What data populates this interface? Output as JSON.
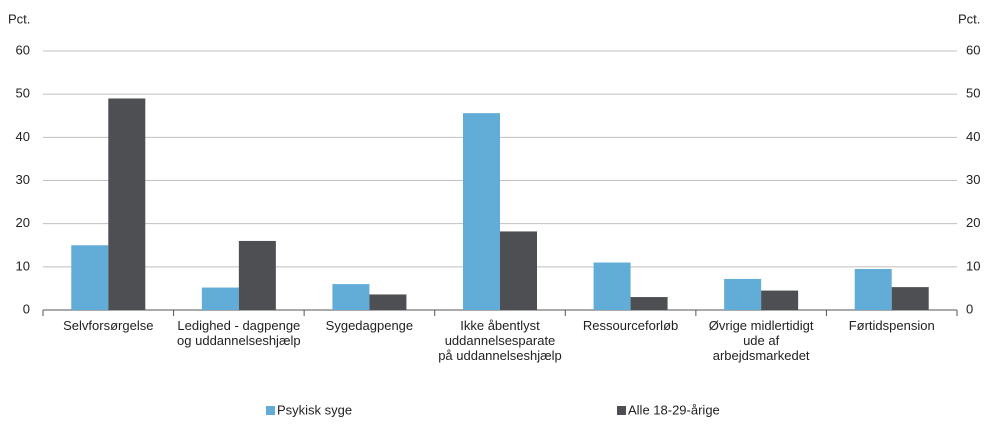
{
  "chart_data": {
    "type": "bar",
    "ylabel": "Pct.",
    "y2label": "Pct.",
    "categories": [
      "Selvforsørgelse",
      "Ledighed - dagpenge og uddannelseshjælp",
      "Sygedagpenge",
      "Ikke åbentlyst uddannelsesparate på uddannelseshjælp",
      "Ressourceforløb",
      "Øvrige midlertidigt ude af arbejdsmarkedet",
      "Førtidspension"
    ],
    "series": [
      {
        "name": "Psykisk syge",
        "color": "#62acd8",
        "values": [
          15,
          5.2,
          6,
          45.6,
          11,
          7.2,
          9.5
        ]
      },
      {
        "name": "Alle 18-29-årige",
        "color": "#4d4f53",
        "values": [
          49,
          16,
          3.6,
          18.2,
          3,
          4.5,
          5.3
        ]
      }
    ],
    "ylim": [
      0,
      60
    ],
    "yticks": [
      0,
      10,
      20,
      30,
      40,
      50,
      60
    ],
    "y2lim": [
      0,
      60
    ],
    "y2ticks": [
      0,
      10,
      20,
      30,
      40,
      50,
      60
    ],
    "grid": true,
    "legend": "bottom"
  }
}
